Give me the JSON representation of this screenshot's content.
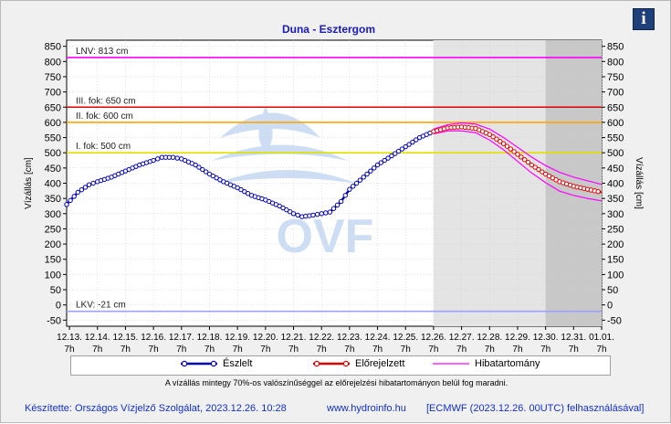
{
  "title": "Duna - Esztergom",
  "ylabel_left": "Vízállás [cm]",
  "ylabel_right": "Vízállás [cm]",
  "note": "A vízállás mintegy 70%-os valószínűséggel az előrejelzési hibatartományon belül fog maradni.",
  "footer": {
    "left": "Készítette: Országos Vízjelző Szolgálat, 2023.12.26. 10:28",
    "middle": "www.hydroinfo.hu",
    "right": "[ECMWF (2023.12.26. 00UTC) felhasználásával]"
  },
  "legend": {
    "observed": "Észlelt",
    "forecast": "Előrejelzett",
    "error": "Hibatartomány"
  },
  "watermark": "OVF",
  "colors": {
    "observed": "#0000b4",
    "forecast": "#e00000",
    "error": "#ff00ff",
    "title": "#1a1ab4"
  },
  "chart_data": {
    "type": "line",
    "ylim": [
      -70,
      870
    ],
    "yticks": [
      -50,
      0,
      50,
      100,
      150,
      200,
      250,
      300,
      350,
      400,
      450,
      500,
      550,
      600,
      650,
      700,
      750,
      800,
      850
    ],
    "x_date_labels": [
      "12.13.",
      "12.14.",
      "12.15.",
      "12.16.",
      "12.17.",
      "12.18.",
      "12.19.",
      "12.20.",
      "12.21.",
      "12.22.",
      "12.23.",
      "12.24.",
      "12.25.",
      "12.26.",
      "12.27.",
      "12.28.",
      "12.29.",
      "12.30.",
      "12.31.",
      "01.01."
    ],
    "x_hour_label": "7h",
    "x_range_days": [
      -0.1,
      19.0
    ],
    "forecast_start_day": 13,
    "far_forecast_start_day": 17,
    "thresholds": [
      {
        "label": "LNV: 813 cm",
        "value": 813,
        "color": "#ff00ff"
      },
      {
        "label": "III. fok: 650 cm",
        "value": 650,
        "color": "#e00000"
      },
      {
        "label": "II. fok: 600 cm",
        "value": 600,
        "color": "#ffa500"
      },
      {
        "label": "I. fok: 500 cm",
        "value": 500,
        "color": "#e0e000"
      },
      {
        "label": "LKV: -21 cm",
        "value": -21,
        "color": "#a0a0ff"
      }
    ],
    "series": [
      {
        "name": "Észlelt",
        "days": [
          -0.1,
          0.3,
          0.7,
          1.0,
          1.5,
          2.0,
          2.5,
          3.0,
          3.3,
          3.7,
          4.0,
          4.5,
          5.0,
          5.5,
          6.0,
          6.5,
          7.0,
          7.5,
          8.0,
          8.3,
          8.7,
          9.0,
          9.3,
          9.7,
          10.0,
          10.5,
          11.0,
          11.5,
          12.0,
          12.5,
          13.0
        ],
        "values": [
          330,
          370,
          395,
          405,
          420,
          440,
          460,
          475,
          485,
          485,
          480,
          460,
          430,
          405,
          385,
          360,
          345,
          325,
          300,
          290,
          295,
          300,
          305,
          340,
          380,
          420,
          460,
          490,
          520,
          550,
          570
        ]
      },
      {
        "name": "Előrejelzett",
        "days": [
          13.0,
          13.5,
          14.0,
          14.5,
          15.0,
          15.5,
          16.0,
          16.5,
          17.0,
          17.5,
          18.0,
          18.5,
          19.0
        ],
        "values": [
          570,
          582,
          585,
          580,
          560,
          530,
          495,
          460,
          430,
          405,
          390,
          380,
          370
        ]
      },
      {
        "name": "Hibatartomány",
        "days": [
          13.0,
          13.5,
          14.0,
          14.5,
          15.0,
          15.5,
          16.0,
          16.5,
          17.0,
          17.5,
          18.0,
          18.5,
          19.0
        ],
        "upper": [
          578,
          592,
          598,
          594,
          578,
          550,
          518,
          486,
          458,
          436,
          420,
          408,
          396
        ],
        "lower": [
          562,
          572,
          572,
          566,
          542,
          510,
          472,
          434,
          402,
          374,
          360,
          350,
          342
        ]
      }
    ]
  }
}
